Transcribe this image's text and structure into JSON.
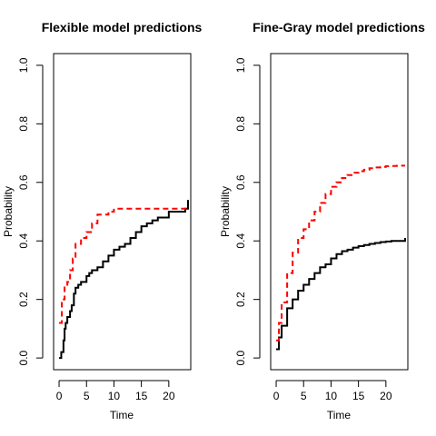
{
  "chart_data": [
    {
      "type": "line",
      "step": true,
      "title": "Flexible model predictions",
      "xlabel": "Time",
      "ylabel": "Probability",
      "xlim": [
        -1,
        24
      ],
      "ylim": [
        -0.04,
        1.04
      ],
      "xticks": [
        0,
        5,
        10,
        15,
        20
      ],
      "yticks": [
        0.0,
        0.2,
        0.4,
        0.6,
        0.8,
        1.0
      ],
      "series": [
        {
          "color": "#000000",
          "dash": "solid",
          "x": [
            0,
            0.4,
            0.8,
            1.0,
            1.2,
            1.5,
            2.0,
            2.3,
            2.7,
            3.0,
            3.5,
            4.0,
            5.0,
            5.5,
            6.0,
            7.0,
            8.0,
            9.0,
            10.0,
            11.0,
            12.0,
            13.0,
            14.0,
            15.0,
            16.0,
            17.0,
            18.0,
            20.0,
            23.0,
            23.5
          ],
          "y": [
            0.0,
            0.02,
            0.06,
            0.1,
            0.12,
            0.14,
            0.16,
            0.18,
            0.22,
            0.24,
            0.25,
            0.26,
            0.28,
            0.29,
            0.3,
            0.31,
            0.33,
            0.35,
            0.37,
            0.38,
            0.39,
            0.41,
            0.43,
            0.45,
            0.46,
            0.47,
            0.48,
            0.5,
            0.51,
            0.54
          ]
        },
        {
          "color": "#ff0000",
          "dash": "dashed",
          "x": [
            0,
            0.5,
            1.0,
            1.5,
            2.0,
            2.5,
            3.0,
            4.0,
            5.0,
            6.0,
            7.0,
            9.0,
            10.0,
            23.5
          ],
          "y": [
            0.12,
            0.2,
            0.25,
            0.26,
            0.3,
            0.34,
            0.39,
            0.41,
            0.43,
            0.46,
            0.49,
            0.5,
            0.51,
            0.51
          ]
        }
      ]
    },
    {
      "type": "line",
      "step": true,
      "title": "Fine-Gray model predictions",
      "xlabel": "Time",
      "ylabel": "Probability",
      "xlim": [
        -1,
        24
      ],
      "ylim": [
        -0.04,
        1.04
      ],
      "xticks": [
        0,
        5,
        10,
        15,
        20
      ],
      "yticks": [
        0.0,
        0.2,
        0.4,
        0.6,
        0.8,
        1.0
      ],
      "series": [
        {
          "color": "#000000",
          "dash": "solid",
          "x": [
            0,
            0.5,
            1,
            2,
            3,
            4,
            5,
            6,
            7,
            8,
            9,
            10,
            11,
            12,
            13,
            14,
            15,
            16,
            17,
            18,
            19,
            20,
            21,
            22,
            23,
            23.5
          ],
          "y": [
            0.03,
            0.07,
            0.11,
            0.17,
            0.2,
            0.23,
            0.25,
            0.27,
            0.29,
            0.31,
            0.32,
            0.34,
            0.355,
            0.365,
            0.37,
            0.377,
            0.382,
            0.386,
            0.39,
            0.393,
            0.396,
            0.398,
            0.4,
            0.4,
            0.4,
            0.41
          ]
        },
        {
          "color": "#ff0000",
          "dash": "dashed",
          "x": [
            0,
            0.5,
            1,
            2,
            3,
            4,
            5,
            6,
            7,
            8,
            9,
            10,
            11,
            12,
            13,
            14,
            15,
            16,
            17,
            18,
            19,
            20,
            21,
            22,
            23,
            23.5
          ],
          "y": [
            0.06,
            0.12,
            0.19,
            0.29,
            0.36,
            0.41,
            0.44,
            0.47,
            0.5,
            0.53,
            0.56,
            0.585,
            0.6,
            0.615,
            0.625,
            0.633,
            0.638,
            0.643,
            0.648,
            0.651,
            0.653,
            0.655,
            0.656,
            0.657,
            0.657,
            0.657
          ]
        }
      ]
    }
  ]
}
